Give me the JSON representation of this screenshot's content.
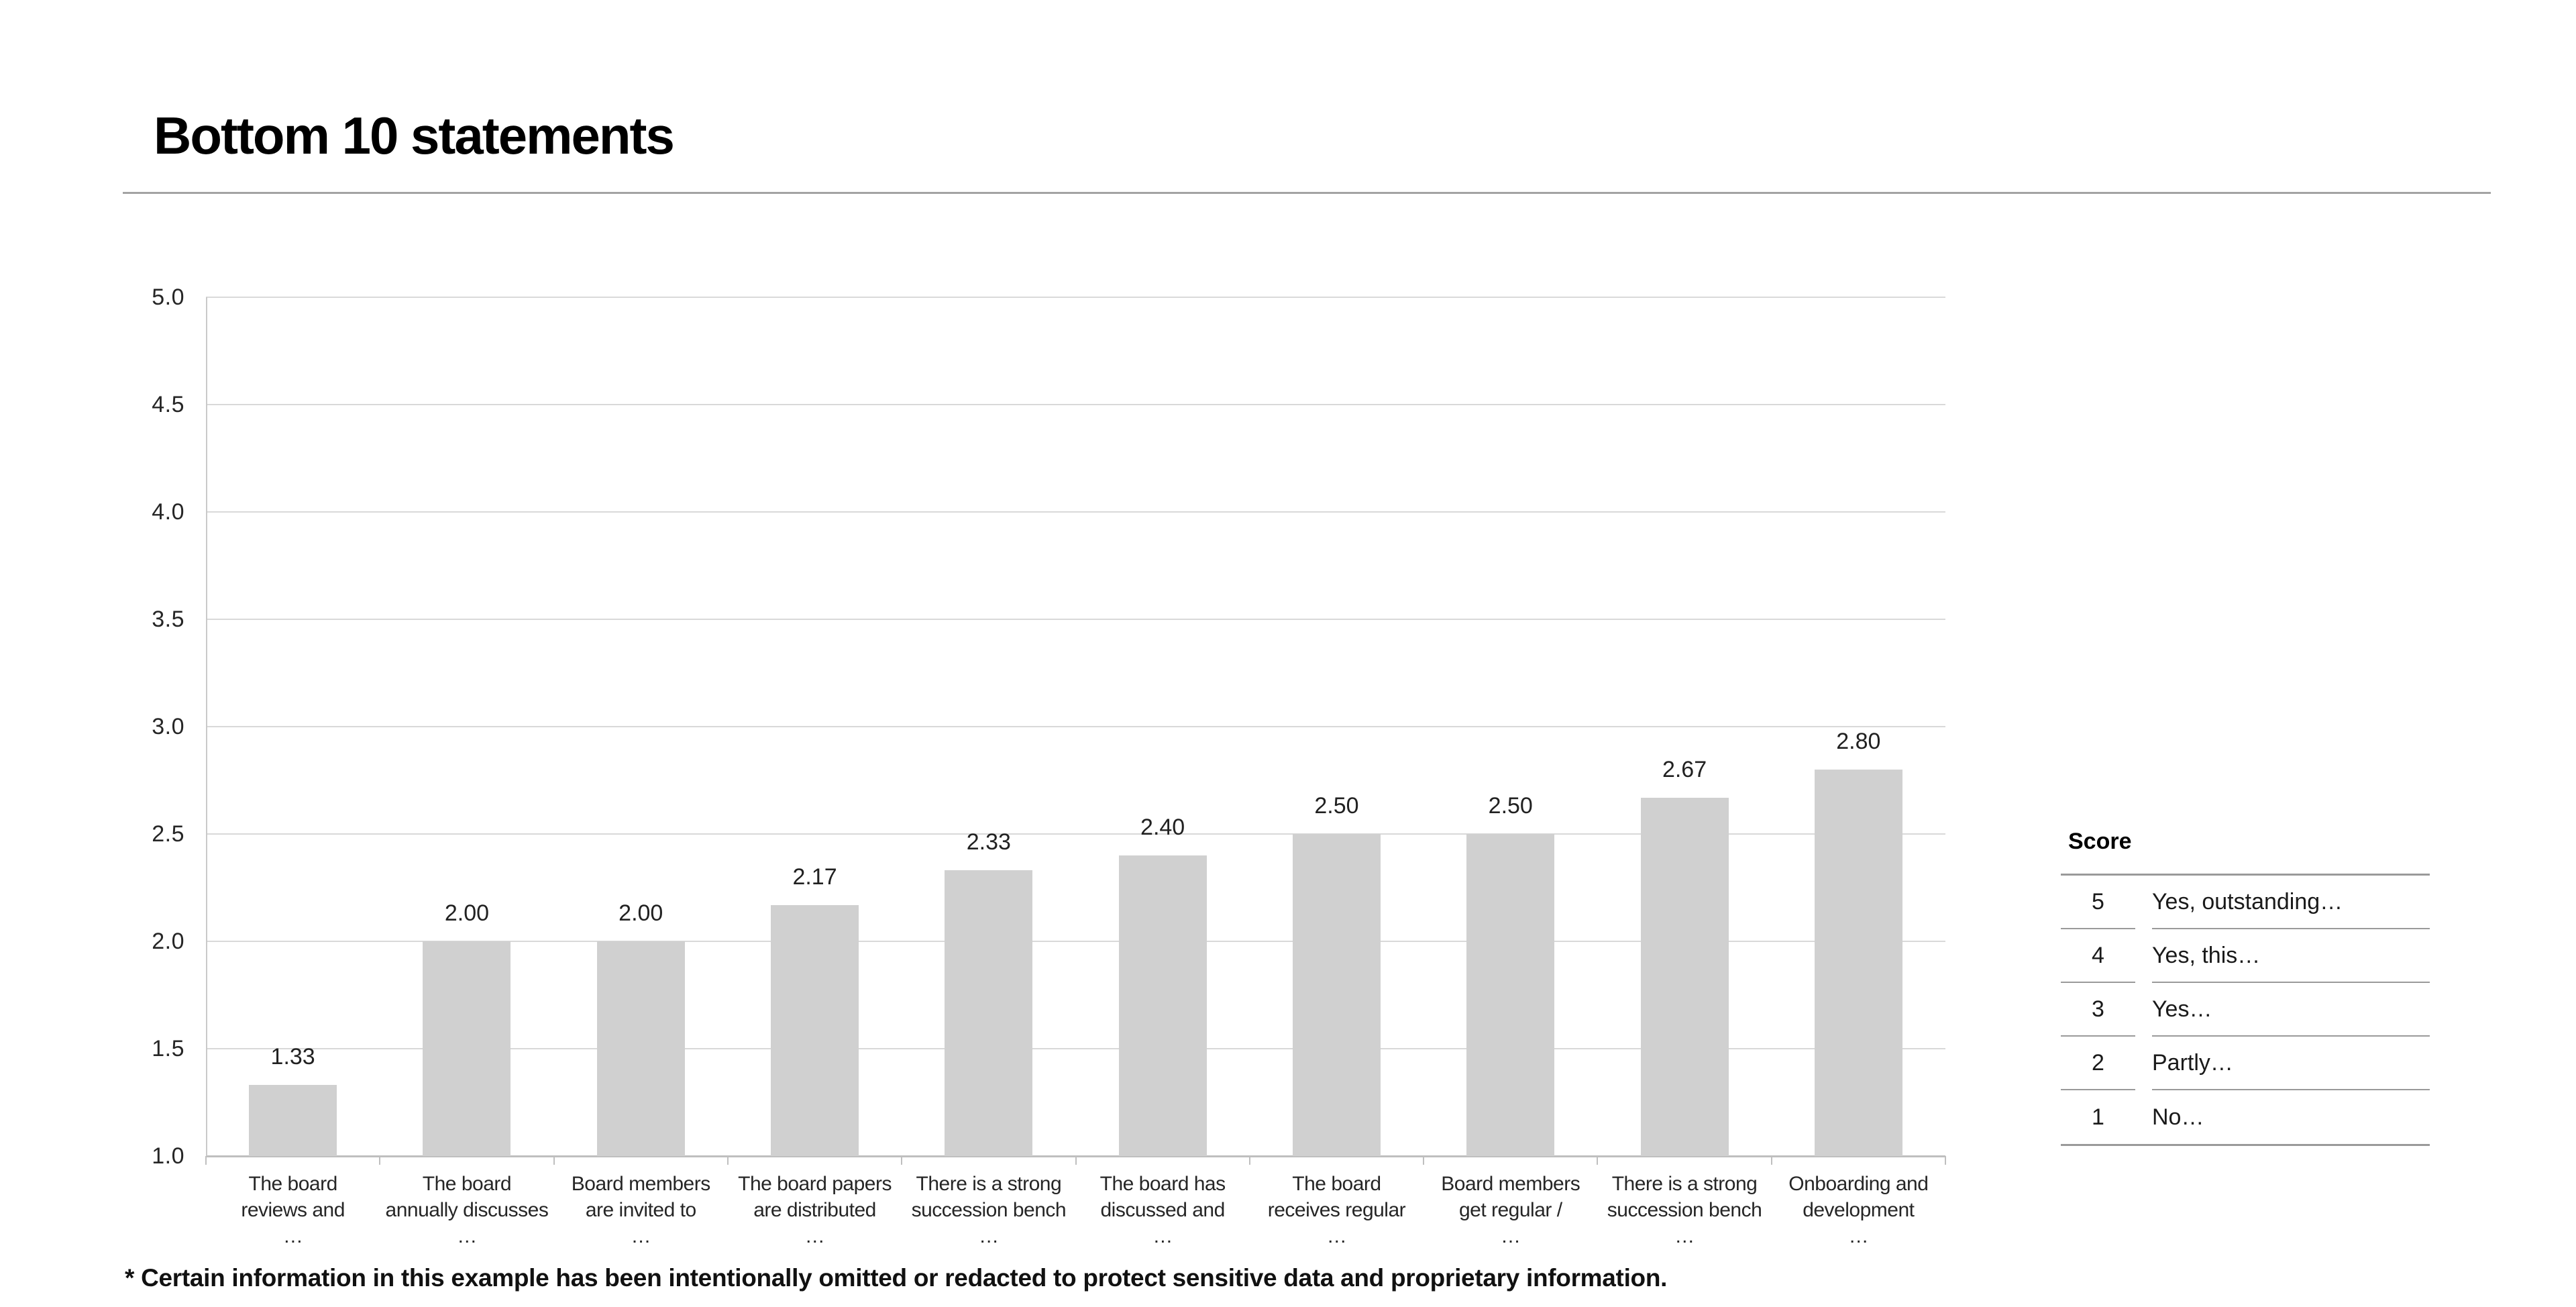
{
  "title": "Bottom 10 statements",
  "footnote": "* Certain information in this example has been intentionally omitted or redacted to protect sensitive data and proprietary information.",
  "score_legend": {
    "title": "Score",
    "rows": [
      {
        "score": "5",
        "label": "Yes, outstanding…"
      },
      {
        "score": "4",
        "label": "Yes, this…"
      },
      {
        "score": "3",
        "label": "Yes…"
      },
      {
        "score": "2",
        "label": "Partly…"
      },
      {
        "score": "1",
        "label": "No…"
      }
    ]
  },
  "chart_data": {
    "type": "bar",
    "title": "Bottom 10 statements",
    "categories": [
      [
        "The board",
        "reviews and",
        "…"
      ],
      [
        "The board",
        "annually discusses",
        "…"
      ],
      [
        "Board members",
        "are invited to",
        "…"
      ],
      [
        "The board papers",
        "are distributed",
        "…"
      ],
      [
        "There is a strong",
        "succession bench",
        "…"
      ],
      [
        "The board has",
        "discussed and",
        "…"
      ],
      [
        "The board",
        "receives regular",
        "…"
      ],
      [
        "Board members",
        "get regular /",
        "…"
      ],
      [
        "There is a strong",
        "succession bench",
        "…"
      ],
      [
        "Onboarding and",
        "development",
        "…"
      ]
    ],
    "values": [
      1.33,
      2.0,
      2.0,
      2.17,
      2.33,
      2.4,
      2.5,
      2.5,
      2.67,
      2.8
    ],
    "value_labels": [
      "1.33",
      "2.00",
      "2.00",
      "2.17",
      "2.33",
      "2.40",
      "2.50",
      "2.50",
      "2.67",
      "2.80"
    ],
    "xlabel": "",
    "ylabel": "",
    "ylim": [
      1.0,
      5.0
    ],
    "ytick_step": 0.5,
    "yticks": [
      "5.0",
      "4.5",
      "4.0",
      "3.5",
      "3.0",
      "2.5",
      "2.0",
      "1.5",
      "1.0"
    ],
    "grid": true,
    "legend_position": "none",
    "bar_color": "#d0d0d0",
    "gridline_color": "#d9d9d9"
  }
}
